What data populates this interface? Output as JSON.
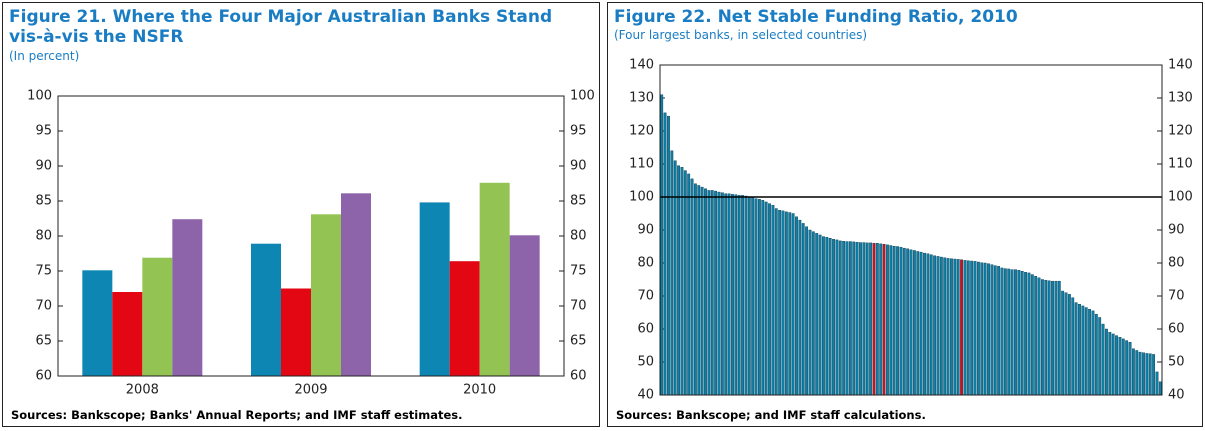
{
  "chart_data": [
    {
      "type": "bar",
      "title": "Figure 21. Where the Four Major Australian Banks Stand vis-à-vis the NSFR",
      "subtitle": "(In percent)",
      "source": "Sources: Bankscope; Banks' Annual Reports; and IMF staff estimates.",
      "categories": [
        "2008",
        "2009",
        "2010"
      ],
      "series": [
        {
          "color": "#0e86b4",
          "values": [
            75.1,
            78.9,
            84.8
          ]
        },
        {
          "color": "#e30613",
          "values": [
            72.0,
            72.5,
            76.4
          ]
        },
        {
          "color": "#92c353",
          "values": [
            76.9,
            83.1,
            87.6
          ]
        },
        {
          "color": "#8d64aa",
          "values": [
            82.4,
            86.1,
            80.1
          ]
        }
      ],
      "ylim": [
        60,
        100
      ],
      "yticks": [
        60,
        65,
        70,
        75,
        80,
        85,
        90,
        95,
        100
      ],
      "y2lim": [
        60,
        100
      ],
      "y2ticks": [
        60,
        65,
        70,
        75,
        80,
        85,
        90,
        95,
        100
      ]
    },
    {
      "type": "bar",
      "title": "Figure 22. Net Stable Funding Ratio, 2010",
      "subtitle": "(Four largest banks, in selected countries)",
      "source": "Sources: Bankscope; and IMF staff calculations.",
      "values": [
        131,
        125.5,
        124.5,
        114,
        111,
        109.5,
        109,
        108,
        107,
        105.5,
        104,
        103.5,
        103,
        102.5,
        102,
        102,
        101.8,
        101.5,
        101.3,
        101,
        101,
        100.8,
        100.7,
        100.5,
        100.5,
        100.3,
        100.1,
        100,
        99.5,
        99.3,
        99,
        98.5,
        98,
        97.5,
        96.5,
        96,
        95.8,
        95.5,
        95.3,
        95,
        94,
        93,
        92,
        91,
        90,
        89.5,
        89,
        88.5,
        88,
        87.8,
        87.5,
        87.2,
        87,
        86.7,
        86.6,
        86.5,
        86.5,
        86.4,
        86.3,
        86.2,
        86.2,
        86.1,
        86.1,
        86,
        86,
        85.8,
        85.7,
        85.5,
        85.3,
        85.1,
        85,
        84.8,
        84.5,
        84.3,
        84,
        83.8,
        83.5,
        83.3,
        83,
        82.8,
        82.5,
        82.2,
        82,
        81.8,
        81.6,
        81.4,
        81.3,
        81.2,
        81.1,
        81,
        80.8,
        80.7,
        80.6,
        80.5,
        80.3,
        80.1,
        80,
        79.8,
        79.5,
        79.2,
        79,
        78.5,
        78.3,
        78.2,
        78,
        78,
        77.8,
        77.5,
        77.2,
        77,
        76.5,
        76,
        75.5,
        75,
        74.8,
        74.6,
        74.5,
        74.5,
        74.5,
        71.5,
        71,
        70.5,
        69.5,
        68,
        67.5,
        67,
        66.5,
        66,
        65.5,
        64.5,
        63.5,
        61.5,
        60,
        59,
        58.5,
        58,
        57.5,
        57,
        56.5,
        56,
        54,
        53.5,
        53,
        52.8,
        52.6,
        52.5,
        52.3,
        47,
        44
      ],
      "colors": [
        "#0e7fa6",
        "#0e7fa6",
        "#0e7fa6",
        "#0e7fa6",
        "#0e7fa6",
        "#0e7fa6",
        "#0e7fa6",
        "#0e7fa6",
        "#0e7fa6",
        "#0e7fa6",
        "#0e7fa6",
        "#0e7fa6",
        "#0e7fa6",
        "#0e7fa6",
        "#0e7fa6",
        "#0e7fa6",
        "#0e7fa6",
        "#0e7fa6",
        "#0e7fa6",
        "#0e7fa6",
        "#0e7fa6",
        "#0e7fa6",
        "#0e7fa6",
        "#0e7fa6",
        "#0e7fa6",
        "#0e7fa6",
        "#0e7fa6",
        "#0e7fa6",
        "#0e7fa6",
        "#0e7fa6",
        "#0e7fa6",
        "#0e7fa6",
        "#0e7fa6",
        "#0e7fa6",
        "#0e7fa6",
        "#0e7fa6",
        "#0e7fa6",
        "#0e7fa6",
        "#0e7fa6",
        "#0e7fa6",
        "#0e7fa6",
        "#0e7fa6",
        "#0e7fa6",
        "#0e7fa6",
        "#0e7fa6",
        "#0e7fa6",
        "#0e7fa6",
        "#0e7fa6",
        "#0e7fa6",
        "#0e7fa6",
        "#0e7fa6",
        "#0e7fa6",
        "#0e7fa6",
        "#0e7fa6",
        "#0e7fa6",
        "#0e7fa6",
        "#0e7fa6",
        "#0e7fa6",
        "#0e7fa6",
        "#0e7fa6",
        "#0e7fa6",
        "#0e7fa6",
        "#0e7fa6",
        "#e30613",
        "#0e7fa6",
        "#0e7fa6",
        "#e30613",
        "#0e7fa6",
        "#0e7fa6",
        "#0e7fa6",
        "#0e7fa6",
        "#0e7fa6",
        "#0e7fa6",
        "#0e7fa6",
        "#0e7fa6",
        "#0e7fa6",
        "#0e7fa6",
        "#0e7fa6",
        "#0e7fa6",
        "#0e7fa6",
        "#0e7fa6",
        "#0e7fa6",
        "#0e7fa6",
        "#0e7fa6",
        "#0e7fa6",
        "#0e7fa6",
        "#0e7fa6",
        "#0e7fa6",
        "#0e7fa6",
        "#e30613",
        "#0e7fa6",
        "#0e7fa6",
        "#0e7fa6",
        "#0e7fa6",
        "#0e7fa6",
        "#0e7fa6",
        "#0e7fa6",
        "#0e7fa6",
        "#0e7fa6",
        "#0e7fa6",
        "#0e7fa6",
        "#0e7fa6",
        "#0e7fa6",
        "#0e7fa6",
        "#0e7fa6",
        "#0e7fa6",
        "#0e7fa6",
        "#0e7fa6",
        "#0e7fa6",
        "#0e7fa6",
        "#0e7fa6",
        "#0e7fa6",
        "#0e7fa6",
        "#0e7fa6",
        "#0e7fa6",
        "#0e7fa6",
        "#0e7fa6",
        "#0e7fa6",
        "#0e7fa6",
        "#0e7fa6",
        "#0e7fa6",
        "#0e7fa6",
        "#0e7fa6",
        "#0e7fa6",
        "#0e7fa6",
        "#0e7fa6",
        "#0e7fa6",
        "#0e7fa6",
        "#0e7fa6",
        "#0e7fa6",
        "#0e7fa6",
        "#0e7fa6",
        "#0e7fa6",
        "#0e7fa6",
        "#0e7fa6",
        "#0e7fa6",
        "#0e7fa6",
        "#0e7fa6",
        "#0e7fa6",
        "#0e7fa6",
        "#0e7fa6",
        "#0e7fa6",
        "#0e7fa6",
        "#0e7fa6",
        "#0e7fa6",
        "#0e7fa6",
        "#0e7fa6",
        "#0e7fa6",
        "#0e7fa6"
      ],
      "hline": 100,
      "ylim": [
        40,
        140
      ],
      "yticks": [
        40,
        50,
        60,
        70,
        80,
        90,
        100,
        110,
        120,
        130,
        140
      ],
      "y2lim": [
        40,
        140
      ],
      "y2ticks": [
        40,
        50,
        60,
        70,
        80,
        90,
        100,
        110,
        120,
        130,
        140
      ]
    }
  ]
}
